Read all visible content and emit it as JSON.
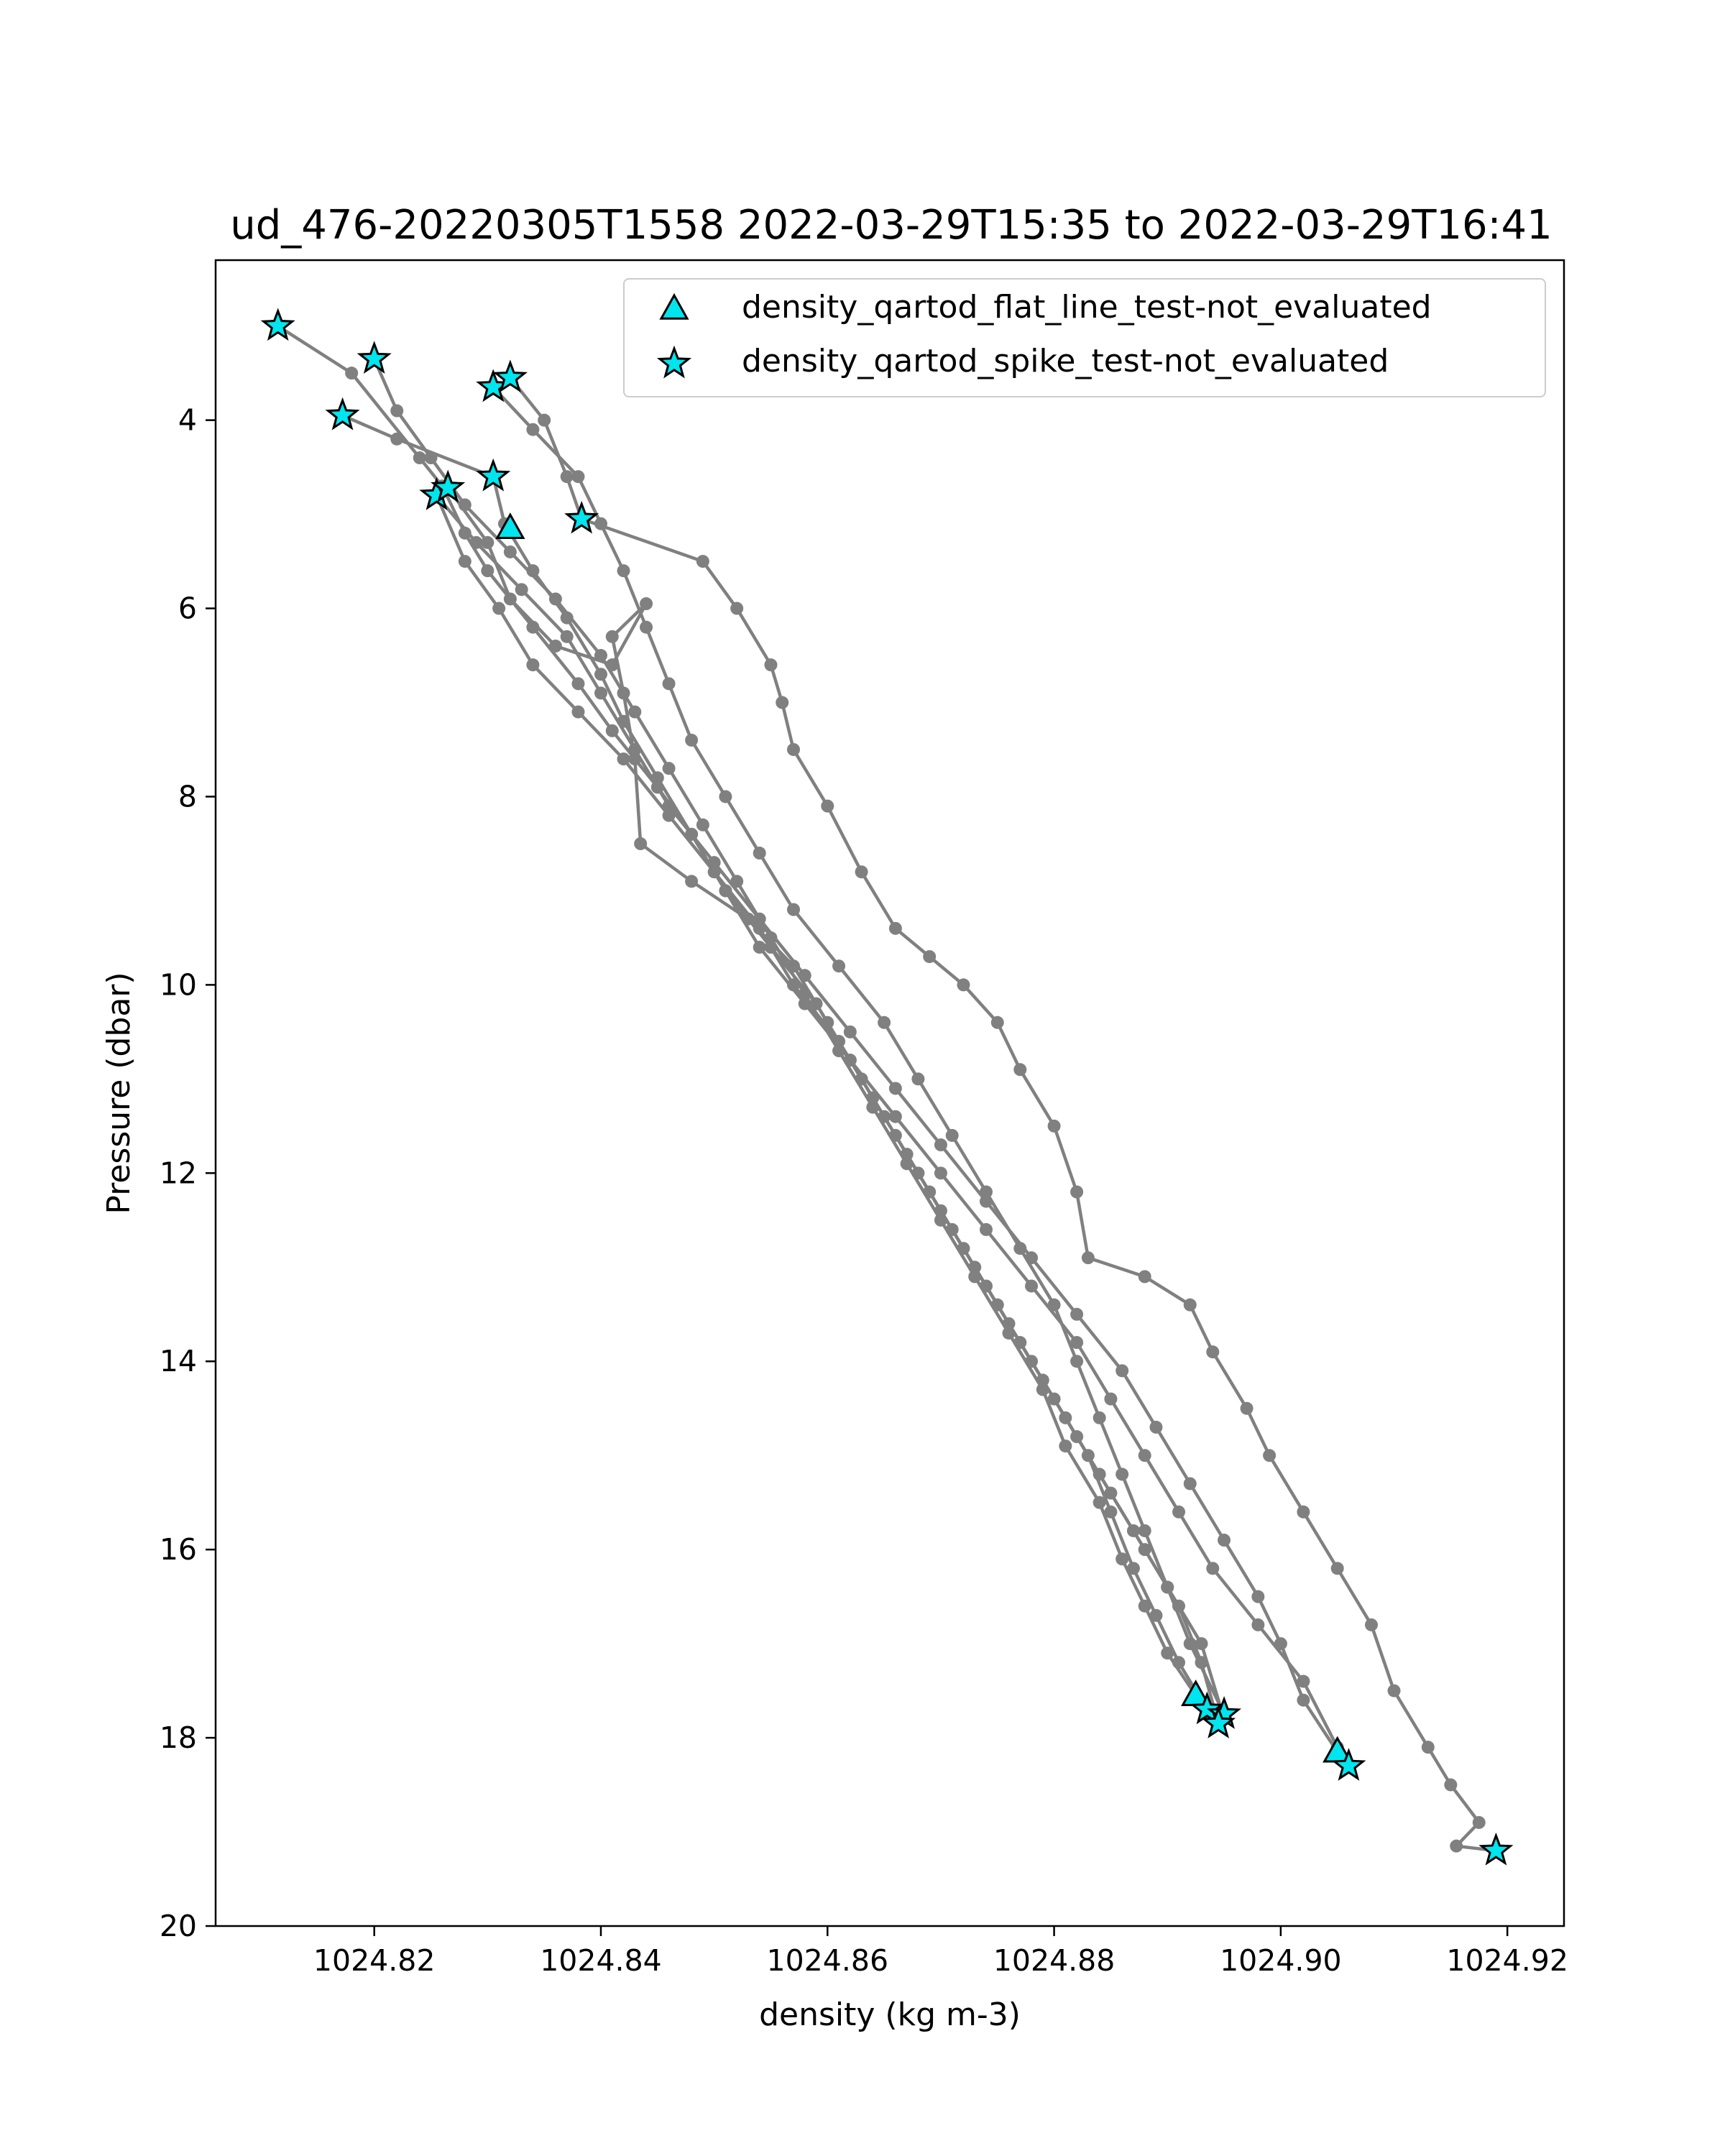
{
  "chart_data": {
    "type": "line",
    "title": "ud_476-20220305T1558 2022-03-29T15:35 to 2022-03-29T16:41",
    "xlabel": "density (kg m-3)",
    "ylabel": "Pressure (dbar)",
    "xlim": [
      1024.806,
      1024.925
    ],
    "ylim": [
      20,
      2.3
    ],
    "y_inverted": true,
    "x_ticks": [
      1024.82,
      1024.84,
      1024.86,
      1024.88,
      1024.9,
      1024.92
    ],
    "x_tick_labels": [
      "1024.82",
      "1024.84",
      "1024.86",
      "1024.88",
      "1024.90",
      "1024.92"
    ],
    "y_ticks": [
      4,
      6,
      8,
      10,
      12,
      14,
      16,
      18,
      20
    ],
    "y_tick_labels": [
      "4",
      "6",
      "8",
      "10",
      "12",
      "14",
      "16",
      "18",
      "20"
    ],
    "grid": false,
    "legend_position": "upper-right",
    "line_color": "#808080",
    "marker_color": "#00e5ee",
    "series": [
      {
        "points": [
          [
            1024.8115,
            3.0
          ],
          [
            1024.818,
            3.5
          ],
          [
            1024.824,
            4.4
          ],
          [
            1024.826,
            4.7
          ],
          [
            1024.828,
            5.2
          ],
          [
            1024.83,
            5.6
          ],
          [
            1024.834,
            6.2
          ],
          [
            1024.838,
            6.8
          ],
          [
            1024.841,
            7.3
          ],
          [
            1024.845,
            7.9
          ],
          [
            1024.848,
            8.4
          ],
          [
            1024.851,
            9.0
          ],
          [
            1024.855,
            9.6
          ],
          [
            1024.859,
            10.2
          ],
          [
            1024.862,
            10.8
          ],
          [
            1024.865,
            11.4
          ],
          [
            1024.868,
            12.0
          ],
          [
            1024.871,
            12.6
          ],
          [
            1024.874,
            13.2
          ],
          [
            1024.877,
            13.8
          ],
          [
            1024.88,
            14.4
          ],
          [
            1024.883,
            15.0
          ],
          [
            1024.885,
            15.6
          ],
          [
            1024.887,
            16.2
          ],
          [
            1024.889,
            16.7
          ],
          [
            1024.891,
            17.2
          ],
          [
            1024.8935,
            17.7
          ]
        ]
      },
      {
        "points": [
          [
            1024.82,
            3.35
          ],
          [
            1024.822,
            3.9
          ],
          [
            1024.825,
            4.4
          ],
          [
            1024.828,
            4.9
          ],
          [
            1024.832,
            5.4
          ],
          [
            1024.836,
            5.9
          ],
          [
            1024.84,
            6.5
          ],
          [
            1024.843,
            7.1
          ],
          [
            1024.846,
            7.7
          ],
          [
            1024.849,
            8.3
          ],
          [
            1024.852,
            8.9
          ],
          [
            1024.855,
            9.5
          ],
          [
            1024.858,
            10.1
          ],
          [
            1024.861,
            10.7
          ],
          [
            1024.864,
            11.3
          ],
          [
            1024.867,
            11.9
          ],
          [
            1024.87,
            12.5
          ],
          [
            1024.873,
            13.1
          ],
          [
            1024.876,
            13.7
          ],
          [
            1024.879,
            14.3
          ],
          [
            1024.881,
            14.9
          ],
          [
            1024.884,
            15.5
          ],
          [
            1024.886,
            16.1
          ],
          [
            1024.888,
            16.6
          ],
          [
            1024.89,
            17.1
          ],
          [
            1024.8925,
            17.55
          ]
        ]
      },
      {
        "points": [
          [
            1024.8305,
            3.65
          ],
          [
            1024.834,
            4.1
          ],
          [
            1024.838,
            4.6
          ],
          [
            1024.84,
            5.1
          ],
          [
            1024.842,
            5.6
          ],
          [
            1024.844,
            6.2
          ],
          [
            1024.846,
            6.8
          ],
          [
            1024.848,
            7.4
          ],
          [
            1024.851,
            8.0
          ],
          [
            1024.854,
            8.6
          ],
          [
            1024.857,
            9.2
          ],
          [
            1024.861,
            9.8
          ],
          [
            1024.865,
            10.4
          ],
          [
            1024.868,
            11.0
          ],
          [
            1024.871,
            11.6
          ],
          [
            1024.874,
            12.2
          ],
          [
            1024.877,
            12.8
          ],
          [
            1024.88,
            13.4
          ],
          [
            1024.882,
            14.0
          ],
          [
            1024.884,
            14.6
          ],
          [
            1024.886,
            15.2
          ],
          [
            1024.888,
            15.8
          ],
          [
            1024.89,
            16.4
          ],
          [
            1024.892,
            17.0
          ],
          [
            1024.895,
            17.75
          ]
        ]
      },
      {
        "points": [
          [
            1024.832,
            3.55
          ],
          [
            1024.835,
            4.0
          ],
          [
            1024.837,
            4.6
          ],
          [
            1024.8383,
            5.05
          ],
          [
            1024.849,
            5.5
          ],
          [
            1024.852,
            6.0
          ],
          [
            1024.855,
            6.6
          ],
          [
            1024.856,
            7.0
          ],
          [
            1024.857,
            7.5
          ],
          [
            1024.86,
            8.1
          ],
          [
            1024.863,
            8.8
          ],
          [
            1024.866,
            9.4
          ],
          [
            1024.869,
            9.7
          ],
          [
            1024.872,
            10.0
          ],
          [
            1024.875,
            10.4
          ],
          [
            1024.877,
            10.9
          ],
          [
            1024.88,
            11.5
          ],
          [
            1024.882,
            12.2
          ],
          [
            1024.883,
            12.9
          ],
          [
            1024.888,
            13.1
          ],
          [
            1024.892,
            13.4
          ],
          [
            1024.894,
            13.9
          ],
          [
            1024.897,
            14.5
          ],
          [
            1024.899,
            15.0
          ],
          [
            1024.902,
            15.6
          ],
          [
            1024.905,
            16.2
          ],
          [
            1024.908,
            16.8
          ],
          [
            1024.91,
            17.5
          ],
          [
            1024.913,
            18.1
          ],
          [
            1024.915,
            18.5
          ],
          [
            1024.9175,
            18.9
          ],
          [
            1024.9155,
            19.15
          ],
          [
            1024.919,
            19.2
          ]
        ]
      },
      {
        "points": [
          [
            1024.8172,
            3.95
          ],
          [
            1024.822,
            4.2
          ],
          [
            1024.8305,
            4.6
          ],
          [
            1024.8315,
            5.1
          ],
          [
            1024.834,
            5.6
          ],
          [
            1024.837,
            6.1
          ],
          [
            1024.84,
            6.7
          ],
          [
            1024.842,
            7.2
          ],
          [
            1024.845,
            7.8
          ],
          [
            1024.848,
            8.4
          ],
          [
            1024.851,
            9.0
          ],
          [
            1024.854,
            9.6
          ],
          [
            1024.858,
            10.2
          ],
          [
            1024.862,
            10.8
          ],
          [
            1024.866,
            11.4
          ],
          [
            1024.87,
            12.0
          ],
          [
            1024.874,
            12.6
          ],
          [
            1024.878,
            13.2
          ],
          [
            1024.882,
            13.8
          ],
          [
            1024.885,
            14.4
          ],
          [
            1024.888,
            15.0
          ],
          [
            1024.891,
            15.6
          ],
          [
            1024.894,
            16.2
          ],
          [
            1024.898,
            16.8
          ],
          [
            1024.902,
            17.4
          ],
          [
            1024.905,
            18.1
          ],
          [
            1024.906,
            18.3
          ]
        ]
      },
      {
        "points": [
          [
            1024.8255,
            4.8
          ],
          [
            1024.829,
            5.3
          ],
          [
            1024.833,
            5.8
          ],
          [
            1024.837,
            6.3
          ],
          [
            1024.84,
            6.9
          ],
          [
            1024.843,
            7.5
          ],
          [
            1024.846,
            8.1
          ],
          [
            1024.85,
            8.7
          ],
          [
            1024.854,
            9.3
          ],
          [
            1024.858,
            9.9
          ],
          [
            1024.862,
            10.5
          ],
          [
            1024.866,
            11.1
          ],
          [
            1024.87,
            11.7
          ],
          [
            1024.874,
            12.3
          ],
          [
            1024.878,
            12.9
          ],
          [
            1024.882,
            13.5
          ],
          [
            1024.886,
            14.1
          ],
          [
            1024.889,
            14.7
          ],
          [
            1024.892,
            15.3
          ],
          [
            1024.895,
            15.9
          ],
          [
            1024.898,
            16.5
          ],
          [
            1024.9,
            17.0
          ],
          [
            1024.902,
            17.6
          ],
          [
            1024.905,
            18.15
          ]
        ]
      },
      {
        "points": [
          [
            1024.8265,
            4.72
          ],
          [
            1024.83,
            5.3
          ],
          [
            1024.832,
            5.9
          ],
          [
            1024.836,
            6.4
          ],
          [
            1024.841,
            6.6
          ],
          [
            1024.844,
            5.95
          ],
          [
            1024.841,
            6.3
          ],
          [
            1024.842,
            6.9
          ],
          [
            1024.843,
            7.6
          ],
          [
            1024.8435,
            8.5
          ],
          [
            1024.848,
            8.9
          ],
          [
            1024.853,
            9.3
          ],
          [
            1024.857,
            9.8
          ],
          [
            1024.86,
            10.4
          ],
          [
            1024.863,
            11.0
          ],
          [
            1024.866,
            11.6
          ],
          [
            1024.869,
            12.2
          ],
          [
            1024.872,
            12.8
          ],
          [
            1024.875,
            13.4
          ],
          [
            1024.878,
            14.0
          ],
          [
            1024.881,
            14.6
          ],
          [
            1024.884,
            15.2
          ],
          [
            1024.887,
            15.8
          ],
          [
            1024.89,
            16.4
          ],
          [
            1024.893,
            17.0
          ],
          [
            1024.895,
            17.8
          ]
        ]
      },
      {
        "points": [
          [
            1024.8255,
            4.8
          ],
          [
            1024.828,
            5.5
          ],
          [
            1024.831,
            6.0
          ],
          [
            1024.834,
            6.6
          ],
          [
            1024.838,
            7.1
          ],
          [
            1024.842,
            7.6
          ],
          [
            1024.846,
            8.2
          ],
          [
            1024.85,
            8.8
          ],
          [
            1024.854,
            9.4
          ],
          [
            1024.857,
            10.0
          ],
          [
            1024.861,
            10.6
          ],
          [
            1024.864,
            11.2
          ],
          [
            1024.867,
            11.8
          ],
          [
            1024.87,
            12.4
          ],
          [
            1024.873,
            13.0
          ],
          [
            1024.876,
            13.6
          ],
          [
            1024.879,
            14.2
          ],
          [
            1024.882,
            14.8
          ],
          [
            1024.885,
            15.4
          ],
          [
            1024.888,
            16.0
          ],
          [
            1024.891,
            16.6
          ],
          [
            1024.893,
            17.2
          ],
          [
            1024.8945,
            17.85
          ]
        ]
      }
    ],
    "flat_line_points": [
      [
        1024.832,
        5.15
      ],
      [
        1024.8925,
        17.55
      ],
      [
        1024.905,
        18.15
      ]
    ],
    "spike_points": [
      [
        1024.8115,
        3.0
      ],
      [
        1024.82,
        3.35
      ],
      [
        1024.8305,
        3.65
      ],
      [
        1024.832,
        3.55
      ],
      [
        1024.8172,
        3.95
      ],
      [
        1024.8305,
        4.6
      ],
      [
        1024.8255,
        4.8
      ],
      [
        1024.8265,
        4.72
      ],
      [
        1024.8383,
        5.05
      ],
      [
        1024.8935,
        17.7
      ],
      [
        1024.895,
        17.75
      ],
      [
        1024.8945,
        17.85
      ],
      [
        1024.906,
        18.3
      ],
      [
        1024.919,
        19.2
      ]
    ],
    "legend": [
      {
        "label": "density_qartod_flat_line_test-not_evaluated",
        "marker": "triangle"
      },
      {
        "label": "density_qartod_spike_test-not_evaluated",
        "marker": "star"
      }
    ]
  }
}
